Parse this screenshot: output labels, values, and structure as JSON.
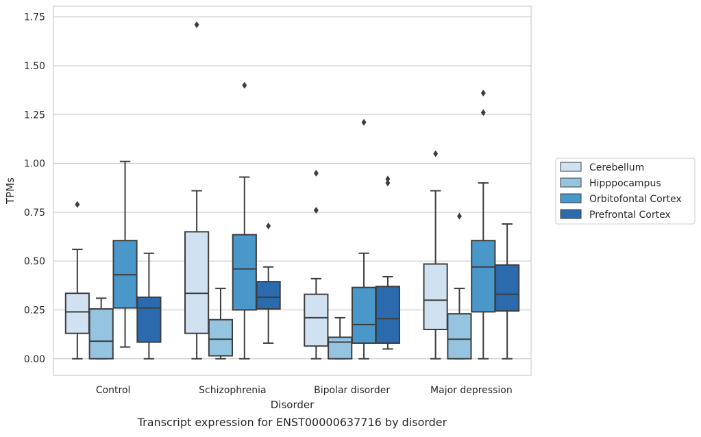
{
  "chart_data": {
    "type": "box",
    "title": "",
    "caption": "Transcript expression for ENST00000637716 by disorder",
    "xlabel": "Disorder",
    "ylabel": "TPMs",
    "ylim": [
      -0.085,
      1.805
    ],
    "yticks": [
      "0.00",
      "0.25",
      "0.50",
      "0.75",
      "1.00",
      "1.25",
      "1.50",
      "1.75"
    ],
    "ytick_values": [
      0,
      0.25,
      0.5,
      0.75,
      1.0,
      1.25,
      1.5,
      1.75
    ],
    "grid": "horizontal",
    "legend_position": "right",
    "categories": [
      "Control",
      "Schizophrenia",
      "Bipolar disorder",
      "Major depression"
    ],
    "series": [
      {
        "name": "Cerebellum",
        "color": "#d0e1f2",
        "boxes": [
          {
            "whisker_low": 0.0,
            "q1": 0.13,
            "median": 0.24,
            "q3": 0.335,
            "whisker_high": 0.56,
            "outliers": [
              0.79
            ]
          },
          {
            "whisker_low": 0.0,
            "q1": 0.13,
            "median": 0.335,
            "q3": 0.65,
            "whisker_high": 0.86,
            "outliers": [
              1.71
            ]
          },
          {
            "whisker_low": 0.0,
            "q1": 0.065,
            "median": 0.21,
            "q3": 0.33,
            "whisker_high": 0.41,
            "outliers": [
              0.76,
              0.95
            ]
          },
          {
            "whisker_low": 0.0,
            "q1": 0.15,
            "median": 0.3,
            "q3": 0.485,
            "whisker_high": 0.86,
            "outliers": [
              1.05
            ]
          }
        ]
      },
      {
        "name": "Hipppocampus",
        "color": "#94c4df",
        "boxes": [
          {
            "whisker_low": 0.0,
            "q1": 0.0,
            "median": 0.09,
            "q3": 0.255,
            "whisker_high": 0.31,
            "outliers": []
          },
          {
            "whisker_low": 0.0,
            "q1": 0.015,
            "median": 0.1,
            "q3": 0.2,
            "whisker_high": 0.36,
            "outliers": []
          },
          {
            "whisker_low": 0.0,
            "q1": 0.0,
            "median": 0.085,
            "q3": 0.11,
            "whisker_high": 0.21,
            "outliers": []
          },
          {
            "whisker_low": 0.0,
            "q1": 0.0,
            "median": 0.1,
            "q3": 0.23,
            "whisker_high": 0.36,
            "outliers": [
              0.73
            ]
          }
        ]
      },
      {
        "name": "Orbitofontal Cortex",
        "color": "#4a98c9",
        "boxes": [
          {
            "whisker_low": 0.06,
            "q1": 0.26,
            "median": 0.43,
            "q3": 0.605,
            "whisker_high": 1.01,
            "outliers": []
          },
          {
            "whisker_low": 0.0,
            "q1": 0.25,
            "median": 0.46,
            "q3": 0.635,
            "whisker_high": 0.93,
            "outliers": [
              1.4
            ]
          },
          {
            "whisker_low": 0.0,
            "q1": 0.08,
            "median": 0.175,
            "q3": 0.365,
            "whisker_high": 0.54,
            "outliers": [
              1.21
            ]
          },
          {
            "whisker_low": 0.0,
            "q1": 0.24,
            "median": 0.47,
            "q3": 0.605,
            "whisker_high": 0.9,
            "outliers": [
              1.26,
              1.36
            ]
          }
        ]
      },
      {
        "name": "Prefrontal Cortex",
        "color": "#2a6aad",
        "boxes": [
          {
            "whisker_low": 0.0,
            "q1": 0.085,
            "median": 0.26,
            "q3": 0.315,
            "whisker_high": 0.54,
            "outliers": []
          },
          {
            "whisker_low": 0.08,
            "q1": 0.255,
            "median": 0.315,
            "q3": 0.395,
            "whisker_high": 0.47,
            "outliers": [
              0.68
            ]
          },
          {
            "whisker_low": 0.05,
            "q1": 0.08,
            "median": 0.205,
            "q3": 0.37,
            "whisker_high": 0.42,
            "outliers": [
              0.9,
              0.92
            ]
          },
          {
            "whisker_low": 0.0,
            "q1": 0.245,
            "median": 0.33,
            "q3": 0.48,
            "whisker_high": 0.69,
            "outliers": []
          }
        ]
      }
    ]
  }
}
